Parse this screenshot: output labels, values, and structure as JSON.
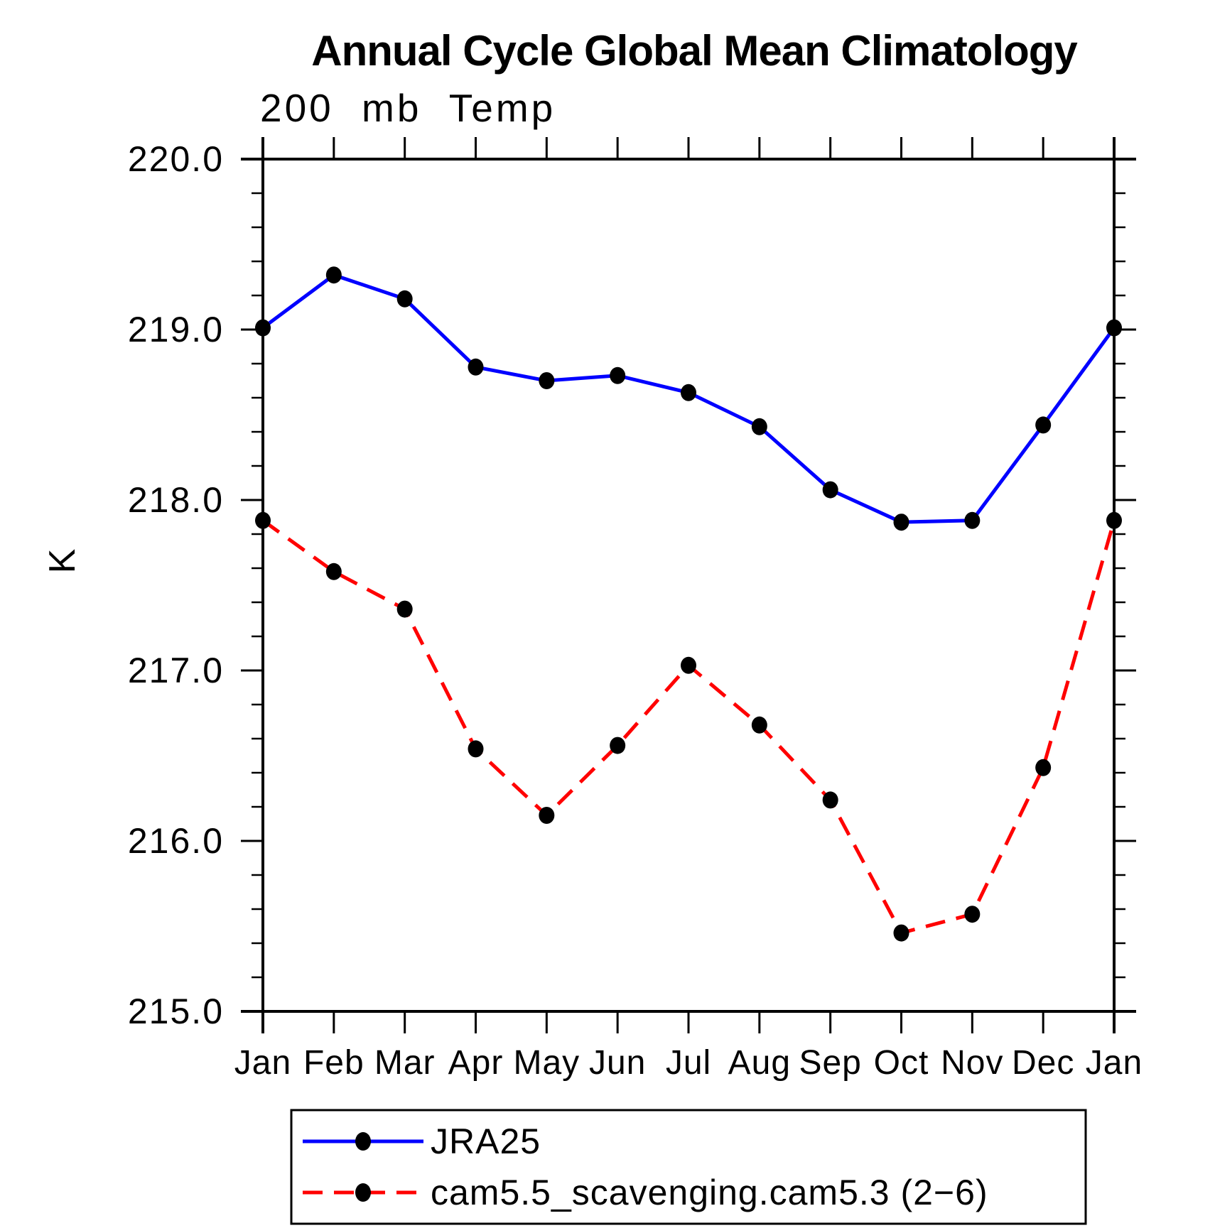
{
  "page": {
    "background": "#ffffff"
  },
  "chart_data": {
    "type": "line",
    "title": "Annual Cycle Global Mean Climatology",
    "subtitle": "200 mb Temp",
    "xlabel": "",
    "ylabel": "K",
    "ylim": [
      215.0,
      220.0
    ],
    "ytick_major": [
      220.0,
      219.0,
      218.0,
      217.0,
      216.0,
      215.0
    ],
    "ytick_labels": [
      "220.0",
      "219.0",
      "218.0",
      "217.0",
      "216.0",
      "215.0"
    ],
    "ytick_minor_step": 0.2,
    "categories": [
      "Jan",
      "Feb",
      "Mar",
      "Apr",
      "May",
      "Jun",
      "Jul",
      "Aug",
      "Sep",
      "Oct",
      "Nov",
      "Dec",
      "Jan"
    ],
    "grid": false,
    "legend_position": "bottom",
    "axis_color": "#000000",
    "series": [
      {
        "name": "JRA25",
        "color": "#0000ff",
        "line_style": "solid",
        "marker": "filled-circle",
        "marker_color": "#000000",
        "values": [
          219.01,
          219.32,
          219.18,
          218.78,
          218.7,
          218.73,
          218.63,
          218.43,
          218.06,
          217.87,
          217.88,
          218.44,
          219.01
        ]
      },
      {
        "name": "cam5.5_scavenging.cam5.3 (2−6)",
        "color": "#ff0000",
        "line_style": "dashed",
        "marker": "filled-circle",
        "marker_color": "#000000",
        "values": [
          217.88,
          217.58,
          217.36,
          216.54,
          216.15,
          216.56,
          217.03,
          216.68,
          216.24,
          215.46,
          215.57,
          216.43,
          217.88
        ]
      }
    ]
  }
}
